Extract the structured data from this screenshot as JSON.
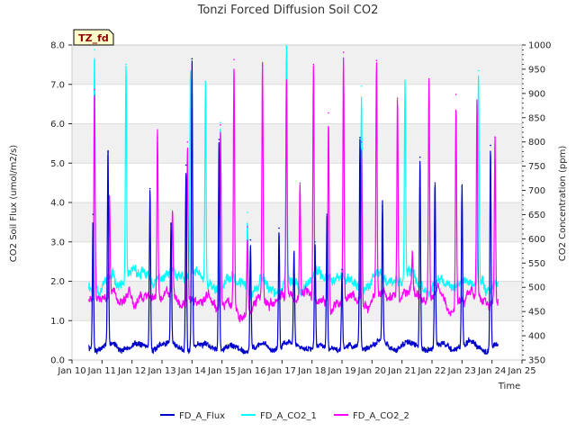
{
  "chart_data": {
    "type": "line",
    "title": "Tonzi Forced Diffusion Soil CO2",
    "xlabel": "Time",
    "ylabel_left": "CO2 Soil Flux (umol/m2/s)",
    "ylabel_right": "CO2 Concentration (ppm)",
    "site_tag": "TZ_fd",
    "x_tick_labels": [
      "Jan 10",
      "Jan 11",
      "Jan 12",
      "Jan 13",
      "Jan 14",
      "Jan 15",
      "Jan 16",
      "Jan 17",
      "Jan 18",
      "Jan 19",
      "Jan 20",
      "Jan 21",
      "Jan 22",
      "Jan 23",
      "Jan 24",
      "Jan 25"
    ],
    "xlim": [
      10,
      25
    ],
    "ylim_left": [
      0,
      8
    ],
    "ylim_right": [
      350,
      1000
    ],
    "y_left_ticks": [
      "0.0",
      "1.0",
      "2.0",
      "3.0",
      "4.0",
      "5.0",
      "6.0",
      "7.0",
      "8.0"
    ],
    "y_right_ticks": [
      "350",
      "400",
      "450",
      "500",
      "550",
      "600",
      "650",
      "700",
      "750",
      "800",
      "850",
      "900",
      "950",
      "1000"
    ],
    "grid": true,
    "legend_position": "bottom-center",
    "series": [
      {
        "name": "FD_A_Flux",
        "axis": "left",
        "color": "#0000cc",
        "baseline": 0.35,
        "peaks": [
          {
            "x": 10.7,
            "y": 3.7
          },
          {
            "x": 11.2,
            "y": 5.3
          },
          {
            "x": 12.6,
            "y": 4.35
          },
          {
            "x": 13.3,
            "y": 3.45
          },
          {
            "x": 13.8,
            "y": 4.95
          },
          {
            "x": 14.0,
            "y": 7.65
          },
          {
            "x": 14.9,
            "y": 5.6
          },
          {
            "x": 15.95,
            "y": 3.05
          },
          {
            "x": 16.9,
            "y": 3.35
          },
          {
            "x": 17.4,
            "y": 2.7
          },
          {
            "x": 18.1,
            "y": 3.0
          },
          {
            "x": 18.5,
            "y": 3.7
          },
          {
            "x": 19.0,
            "y": 2.3
          },
          {
            "x": 19.6,
            "y": 5.65
          },
          {
            "x": 20.35,
            "y": 3.9
          },
          {
            "x": 21.6,
            "y": 5.15
          },
          {
            "x": 22.1,
            "y": 4.5
          },
          {
            "x": 23.0,
            "y": 4.4
          },
          {
            "x": 23.95,
            "y": 5.45
          }
        ]
      },
      {
        "name": "FD_A_CO2_1",
        "axis": "right",
        "color": "#00ffff",
        "baseline": 510,
        "peaks": [
          {
            "x": 10.75,
            "y": 990
          },
          {
            "x": 11.8,
            "y": 960
          },
          {
            "x": 13.95,
            "y": 935
          },
          {
            "x": 14.45,
            "y": 925
          },
          {
            "x": 14.95,
            "y": 840
          },
          {
            "x": 15.85,
            "y": 655
          },
          {
            "x": 17.15,
            "y": 998
          },
          {
            "x": 19.65,
            "y": 915
          },
          {
            "x": 21.1,
            "y": 912
          },
          {
            "x": 23.55,
            "y": 947
          }
        ]
      },
      {
        "name": "FD_A_CO2_2",
        "axis": "right",
        "color": "#ff00ff",
        "baseline": 475,
        "peaks": [
          {
            "x": 10.75,
            "y": 908
          },
          {
            "x": 11.25,
            "y": 680
          },
          {
            "x": 12.85,
            "y": 810
          },
          {
            "x": 13.35,
            "y": 640
          },
          {
            "x": 13.85,
            "y": 800
          },
          {
            "x": 14.95,
            "y": 835
          },
          {
            "x": 15.4,
            "y": 970
          },
          {
            "x": 15.85,
            "y": 625
          },
          {
            "x": 16.35,
            "y": 958
          },
          {
            "x": 17.15,
            "y": 918
          },
          {
            "x": 17.6,
            "y": 715
          },
          {
            "x": 18.05,
            "y": 960
          },
          {
            "x": 18.55,
            "y": 860
          },
          {
            "x": 19.05,
            "y": 985
          },
          {
            "x": 19.65,
            "y": 800
          },
          {
            "x": 20.15,
            "y": 968
          },
          {
            "x": 20.85,
            "y": 890
          },
          {
            "x": 21.35,
            "y": 545
          },
          {
            "x": 21.9,
            "y": 930
          },
          {
            "x": 22.8,
            "y": 898
          },
          {
            "x": 23.5,
            "y": 875
          },
          {
            "x": 24.1,
            "y": 810
          }
        ]
      }
    ]
  }
}
